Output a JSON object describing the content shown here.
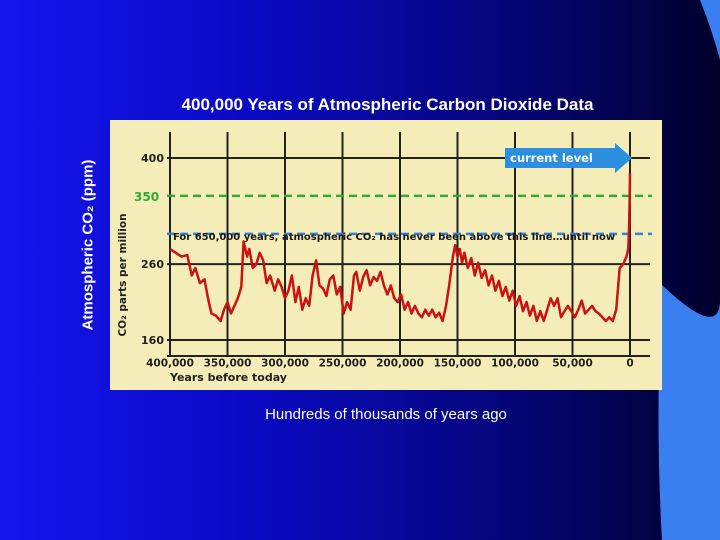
{
  "slide": {
    "title": "400,000 Years of Atmospheric Carbon Dioxide Data",
    "y_side_label": "Atmospheric CO₂ (ppm)",
    "bottom_caption": "Hundreds of thousands of years ago"
  },
  "colors": {
    "background_start": "#1515ee",
    "background_end": "#00002a",
    "panel": "#f5edb8",
    "series": "#cc1111",
    "threshold_350": "#33aa33",
    "threshold_300": "#3a7fd0",
    "arrow": "#2a8fe0",
    "gridline": "#222222"
  },
  "chart_data": {
    "type": "line",
    "xlabel": "Years before today",
    "ylabel": "CO₂ parts per million",
    "x_reversed": true,
    "xlim": [
      400000,
      0
    ],
    "ylim": [
      160,
      400
    ],
    "y_ticks": [
      400,
      260,
      160
    ],
    "y_tick_labels": [
      "400",
      "260",
      "160"
    ],
    "x_ticks": [
      400000,
      350000,
      300000,
      250000,
      200000,
      150000,
      100000,
      50000,
      0
    ],
    "x_tick_labels": [
      "400,000",
      "350,000",
      "300,000",
      "250,000",
      "200,000",
      "150,000",
      "100,000",
      "50,000",
      "0"
    ],
    "grid": true,
    "thresholds": [
      {
        "value": 350,
        "label": "350",
        "style": "dashed",
        "color": "#33aa33"
      },
      {
        "value": 300,
        "style": "dashed",
        "color": "#3a7fd0"
      }
    ],
    "annotations": {
      "current_level": "current level",
      "note": "For 650,000 years, atmospheric CO₂ has never been above this line…until now"
    },
    "series": [
      {
        "values": [
          [
            400000,
            280
          ],
          [
            395000,
            275
          ],
          [
            390000,
            270
          ],
          [
            385000,
            272
          ],
          [
            381000,
            245
          ],
          [
            378000,
            255
          ],
          [
            374000,
            235
          ],
          [
            370000,
            240
          ],
          [
            367000,
            215
          ],
          [
            364000,
            195
          ],
          [
            360000,
            192
          ],
          [
            356000,
            185
          ],
          [
            353000,
            200
          ],
          [
            350000,
            210
          ],
          [
            347000,
            195
          ],
          [
            344000,
            205
          ],
          [
            341000,
            215
          ],
          [
            338000,
            230
          ],
          [
            336000,
            290
          ],
          [
            333000,
            270
          ],
          [
            331000,
            280
          ],
          [
            328000,
            255
          ],
          [
            325000,
            260
          ],
          [
            322000,
            275
          ],
          [
            319000,
            265
          ],
          [
            316000,
            235
          ],
          [
            313000,
            245
          ],
          [
            309000,
            225
          ],
          [
            306000,
            240
          ],
          [
            303000,
            230
          ],
          [
            300000,
            215
          ],
          [
            297000,
            225
          ],
          [
            294000,
            245
          ],
          [
            291000,
            210
          ],
          [
            288000,
            230
          ],
          [
            285000,
            200
          ],
          [
            282000,
            215
          ],
          [
            279000,
            205
          ],
          [
            276000,
            245
          ],
          [
            273000,
            265
          ],
          [
            270000,
            232
          ],
          [
            267000,
            228
          ],
          [
            264000,
            218
          ],
          [
            261000,
            240
          ],
          [
            258000,
            245
          ],
          [
            255000,
            220
          ],
          [
            252000,
            230
          ],
          [
            249000,
            195
          ],
          [
            246000,
            210
          ],
          [
            243000,
            200
          ],
          [
            240000,
            245
          ],
          [
            238000,
            250
          ],
          [
            235000,
            225
          ],
          [
            232000,
            243
          ],
          [
            229000,
            252
          ],
          [
            226000,
            232
          ],
          [
            223000,
            243
          ],
          [
            220000,
            238
          ],
          [
            217000,
            250
          ],
          [
            214000,
            232
          ],
          [
            211000,
            220
          ],
          [
            208000,
            232
          ],
          [
            205000,
            215
          ],
          [
            202000,
            210
          ],
          [
            199000,
            220
          ],
          [
            196000,
            200
          ],
          [
            193000,
            210
          ],
          [
            190000,
            195
          ],
          [
            187000,
            205
          ],
          [
            184000,
            195
          ],
          [
            181000,
            190
          ],
          [
            178000,
            200
          ],
          [
            175000,
            192
          ],
          [
            172000,
            200
          ],
          [
            169000,
            190
          ],
          [
            166000,
            196
          ],
          [
            163000,
            185
          ],
          [
            160000,
            205
          ],
          [
            157000,
            235
          ],
          [
            154000,
            270
          ],
          [
            152000,
            285
          ],
          [
            150000,
            270
          ],
          [
            148000,
            280
          ],
          [
            146000,
            262
          ],
          [
            144000,
            275
          ],
          [
            141000,
            255
          ],
          [
            138000,
            268
          ],
          [
            135000,
            245
          ],
          [
            132000,
            262
          ],
          [
            129000,
            242
          ],
          [
            126000,
            252
          ],
          [
            123000,
            232
          ],
          [
            120000,
            245
          ],
          [
            117000,
            225
          ],
          [
            114000,
            238
          ],
          [
            111000,
            218
          ],
          [
            108000,
            230
          ],
          [
            105000,
            212
          ],
          [
            102000,
            225
          ],
          [
            99000,
            205
          ],
          [
            96000,
            218
          ],
          [
            93000,
            198
          ],
          [
            90000,
            210
          ],
          [
            87000,
            192
          ],
          [
            84000,
            205
          ],
          [
            81000,
            185
          ],
          [
            78000,
            198
          ],
          [
            75000,
            185
          ],
          [
            72000,
            200
          ],
          [
            69000,
            215
          ],
          [
            66000,
            205
          ],
          [
            63000,
            215
          ],
          [
            60000,
            190
          ],
          [
            57000,
            198
          ],
          [
            54000,
            205
          ],
          [
            51000,
            198
          ],
          [
            48000,
            190
          ],
          [
            45000,
            200
          ],
          [
            42000,
            212
          ],
          [
            39000,
            195
          ],
          [
            36000,
            200
          ],
          [
            33000,
            205
          ],
          [
            30000,
            198
          ],
          [
            27000,
            195
          ],
          [
            24000,
            190
          ],
          [
            21000,
            185
          ],
          [
            18000,
            190
          ],
          [
            15000,
            185
          ],
          [
            12000,
            200
          ],
          [
            9000,
            255
          ],
          [
            6000,
            260
          ],
          [
            3000,
            270
          ],
          [
            1500,
            280
          ],
          [
            800,
            310
          ],
          [
            300,
            350
          ],
          [
            0,
            380
          ]
        ]
      }
    ]
  }
}
